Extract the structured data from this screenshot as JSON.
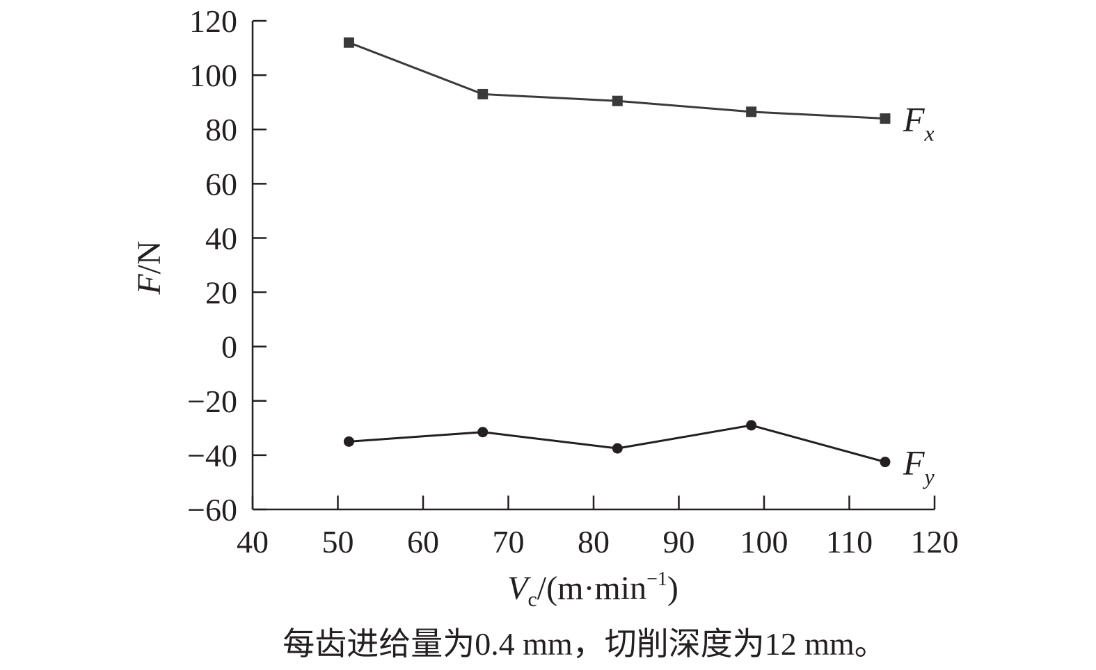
{
  "chart_data": {
    "type": "line",
    "title": "",
    "xlabel": {
      "symbol": "V",
      "subscript": "c",
      "unit_prefix": "/(m",
      "unit_dot": "·",
      "unit_mid": "min",
      "unit_sup": "−1",
      "unit_suffix": ")"
    },
    "ylabel": {
      "symbol": "F",
      "unit": "/N"
    },
    "xlim": [
      40,
      120
    ],
    "ylim": [
      -60,
      120
    ],
    "xticks": [
      40,
      50,
      60,
      70,
      80,
      90,
      100,
      110,
      120
    ],
    "yticks": [
      -60,
      -40,
      -20,
      0,
      20,
      40,
      60,
      80,
      100,
      120
    ],
    "ytick_labels": [
      "−60",
      "−40",
      "−20",
      "0",
      "20",
      "40",
      "60",
      "80",
      "100",
      "120"
    ],
    "grid": false,
    "legend": "none",
    "series": [
      {
        "name": "Fx",
        "label_main": "F",
        "label_sub": "x",
        "marker": "square",
        "color": "#3a3a3a",
        "x": [
          51.3,
          67.0,
          82.8,
          98.5,
          114.2
        ],
        "y": [
          112,
          93,
          90.5,
          86.5,
          84
        ]
      },
      {
        "name": "Fy",
        "label_main": "F",
        "label_sub": "y",
        "marker": "circle",
        "color": "#231f20",
        "x": [
          51.3,
          67.0,
          82.8,
          98.5,
          114.2
        ],
        "y": [
          -35,
          -31.5,
          -37.5,
          -29,
          -42.5
        ]
      }
    ],
    "caption": "每齿进给量为0.4 mm，切削深度为12 mm。"
  }
}
